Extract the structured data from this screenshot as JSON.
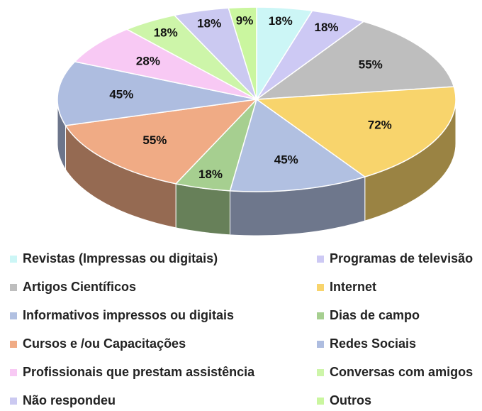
{
  "chart_data": {
    "type": "pie",
    "categories": [
      "Revistas (Impressas ou digitais)",
      "Programas de televisão",
      "Artigos Científicos",
      "Internet",
      "Informativos impressos ou digitais",
      "Dias de campo",
      "Cursos e /ou Capacitações",
      "Redes Sociais",
      "Profissionais que prestam assistência",
      "Conversas com amigos",
      "Não respondeu",
      "Outros"
    ],
    "values": [
      18,
      18,
      55,
      72,
      45,
      18,
      55,
      45,
      28,
      18,
      18,
      9
    ],
    "value_labels": [
      "18%",
      "18%",
      "55%",
      "72%",
      "45%",
      "18%",
      "55%",
      "45%",
      "28%",
      "18%",
      "18%",
      "9%"
    ],
    "colors": [
      "#ccf6f6",
      "#cdc9f4",
      "#bebebe",
      "#f8d46c",
      "#b1c0e1",
      "#a6cf90",
      "#f0ab85",
      "#aebde0",
      "#f8c9f4",
      "#cdf5a9",
      "#cbc9f1",
      "#caf69f"
    ],
    "legend": "bottom"
  }
}
